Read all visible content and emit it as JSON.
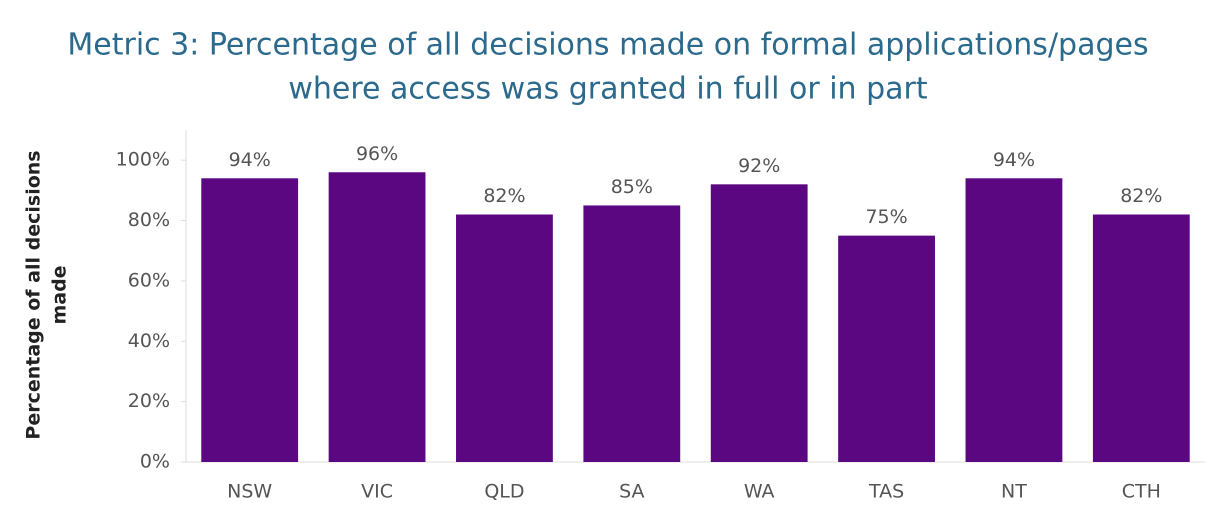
{
  "chart_data": {
    "type": "bar",
    "title": [
      "Metric 3: Percentage of all decisions made on formal applications/pages",
      "where access was granted in full or in part"
    ],
    "y_label": [
      "Percentage of all decisions",
      "made"
    ],
    "categories": [
      "NSW",
      "VIC",
      "QLD",
      "SA",
      "WA",
      "TAS",
      "NT",
      "CTH"
    ],
    "values": [
      94,
      96,
      82,
      85,
      92,
      75,
      94,
      82
    ],
    "value_labels": [
      "94%",
      "96%",
      "82%",
      "85%",
      "92%",
      "75%",
      "94%",
      "82%"
    ],
    "color": "#5b0782",
    "ylim": [
      0,
      110
    ],
    "yticks": [
      {
        "value": 0,
        "label": "0%"
      },
      {
        "value": 20,
        "label": "20%"
      },
      {
        "value": 40,
        "label": "40%"
      },
      {
        "value": 60,
        "label": "60%"
      },
      {
        "value": 80,
        "label": "80%"
      },
      {
        "value": 100,
        "label": "100%"
      }
    ],
    "grid": false
  }
}
